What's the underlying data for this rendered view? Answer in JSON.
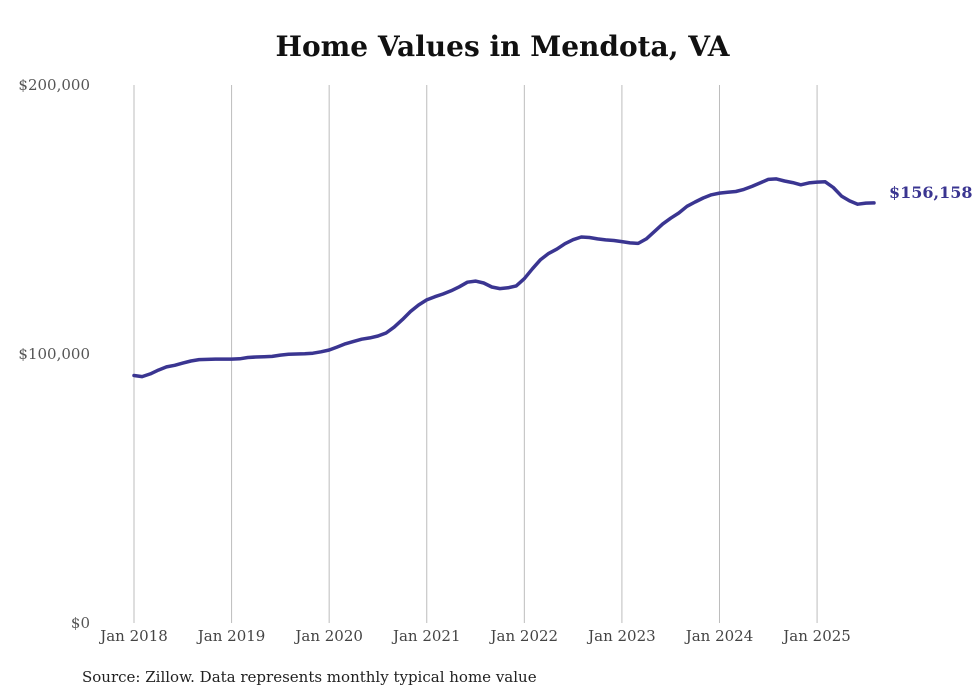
{
  "chart_data": {
    "type": "line",
    "title": "Home Values in Mendota, VA",
    "xlabel": "",
    "ylabel": "",
    "ylim": [
      0,
      200000
    ],
    "y_ticks": [
      "$0",
      "$100,000",
      "$200,000"
    ],
    "x_ticks": [
      "Jan 2018",
      "Jan 2019",
      "Jan 2020",
      "Jan 2021",
      "Jan 2022",
      "Jan 2023",
      "Jan 2024",
      "Jan 2025"
    ],
    "grid": "vertical",
    "line_color": "#3a3591",
    "end_label": "$156,158",
    "series": [
      {
        "x": [
          "2018-01",
          "2018-02",
          "2018-03",
          "2018-04",
          "2018-05",
          "2018-06",
          "2018-07",
          "2018-08",
          "2018-09",
          "2018-10",
          "2018-11",
          "2018-12",
          "2019-01",
          "2019-02",
          "2019-03",
          "2019-04",
          "2019-05",
          "2019-06",
          "2019-07",
          "2019-08",
          "2019-09",
          "2019-10",
          "2019-11",
          "2019-12",
          "2020-01",
          "2020-02",
          "2020-03",
          "2020-04",
          "2020-05",
          "2020-06",
          "2020-07",
          "2020-08",
          "2020-09",
          "2020-10",
          "2020-11",
          "2020-12",
          "2021-01",
          "2021-02",
          "2021-03",
          "2021-04",
          "2021-05",
          "2021-06",
          "2021-07",
          "2021-08",
          "2021-09",
          "2021-10",
          "2021-11",
          "2021-12",
          "2022-01",
          "2022-02",
          "2022-03",
          "2022-04",
          "2022-05",
          "2022-06",
          "2022-07",
          "2022-08",
          "2022-09",
          "2022-10",
          "2022-11",
          "2022-12",
          "2023-01",
          "2023-02",
          "2023-03",
          "2023-04",
          "2023-05",
          "2023-06",
          "2023-07",
          "2023-08",
          "2023-09",
          "2023-10",
          "2023-11",
          "2023-12",
          "2024-01",
          "2024-02",
          "2024-03",
          "2024-04",
          "2024-05",
          "2024-06",
          "2024-07",
          "2024-08",
          "2024-09",
          "2024-10",
          "2024-11",
          "2024-12",
          "2025-01",
          "2025-02",
          "2025-03",
          "2025-04",
          "2025-05",
          "2025-06",
          "2025-07",
          "2025-08"
        ],
        "values": [
          92000,
          91600,
          92600,
          94000,
          95200,
          95800,
          96600,
          97400,
          97900,
          98000,
          98100,
          98100,
          98100,
          98200,
          98700,
          98900,
          99000,
          99100,
          99600,
          99900,
          100000,
          100100,
          100300,
          100800,
          101500,
          102600,
          103800,
          104700,
          105500,
          106000,
          106700,
          107800,
          110000,
          112800,
          115800,
          118200,
          120100,
          121300,
          122300,
          123500,
          125000,
          126700,
          127100,
          126400,
          124900,
          124300,
          124600,
          125300,
          128000,
          131700,
          135100,
          137400,
          139000,
          141000,
          142500,
          143500,
          143300,
          142800,
          142400,
          142200,
          141800,
          141300,
          141100,
          142800,
          145500,
          148300,
          150500,
          152400,
          154900,
          156500,
          158000,
          159200,
          159800,
          160100,
          160400,
          161200,
          162300,
          163600,
          164900,
          165100,
          164300,
          163700,
          162900,
          163600,
          163900,
          164000,
          161900,
          158700,
          156900,
          155700,
          156100,
          156158
        ]
      }
    ]
  },
  "footer": {
    "source": "Source: Zillow. Data represents monthly typical home value"
  }
}
